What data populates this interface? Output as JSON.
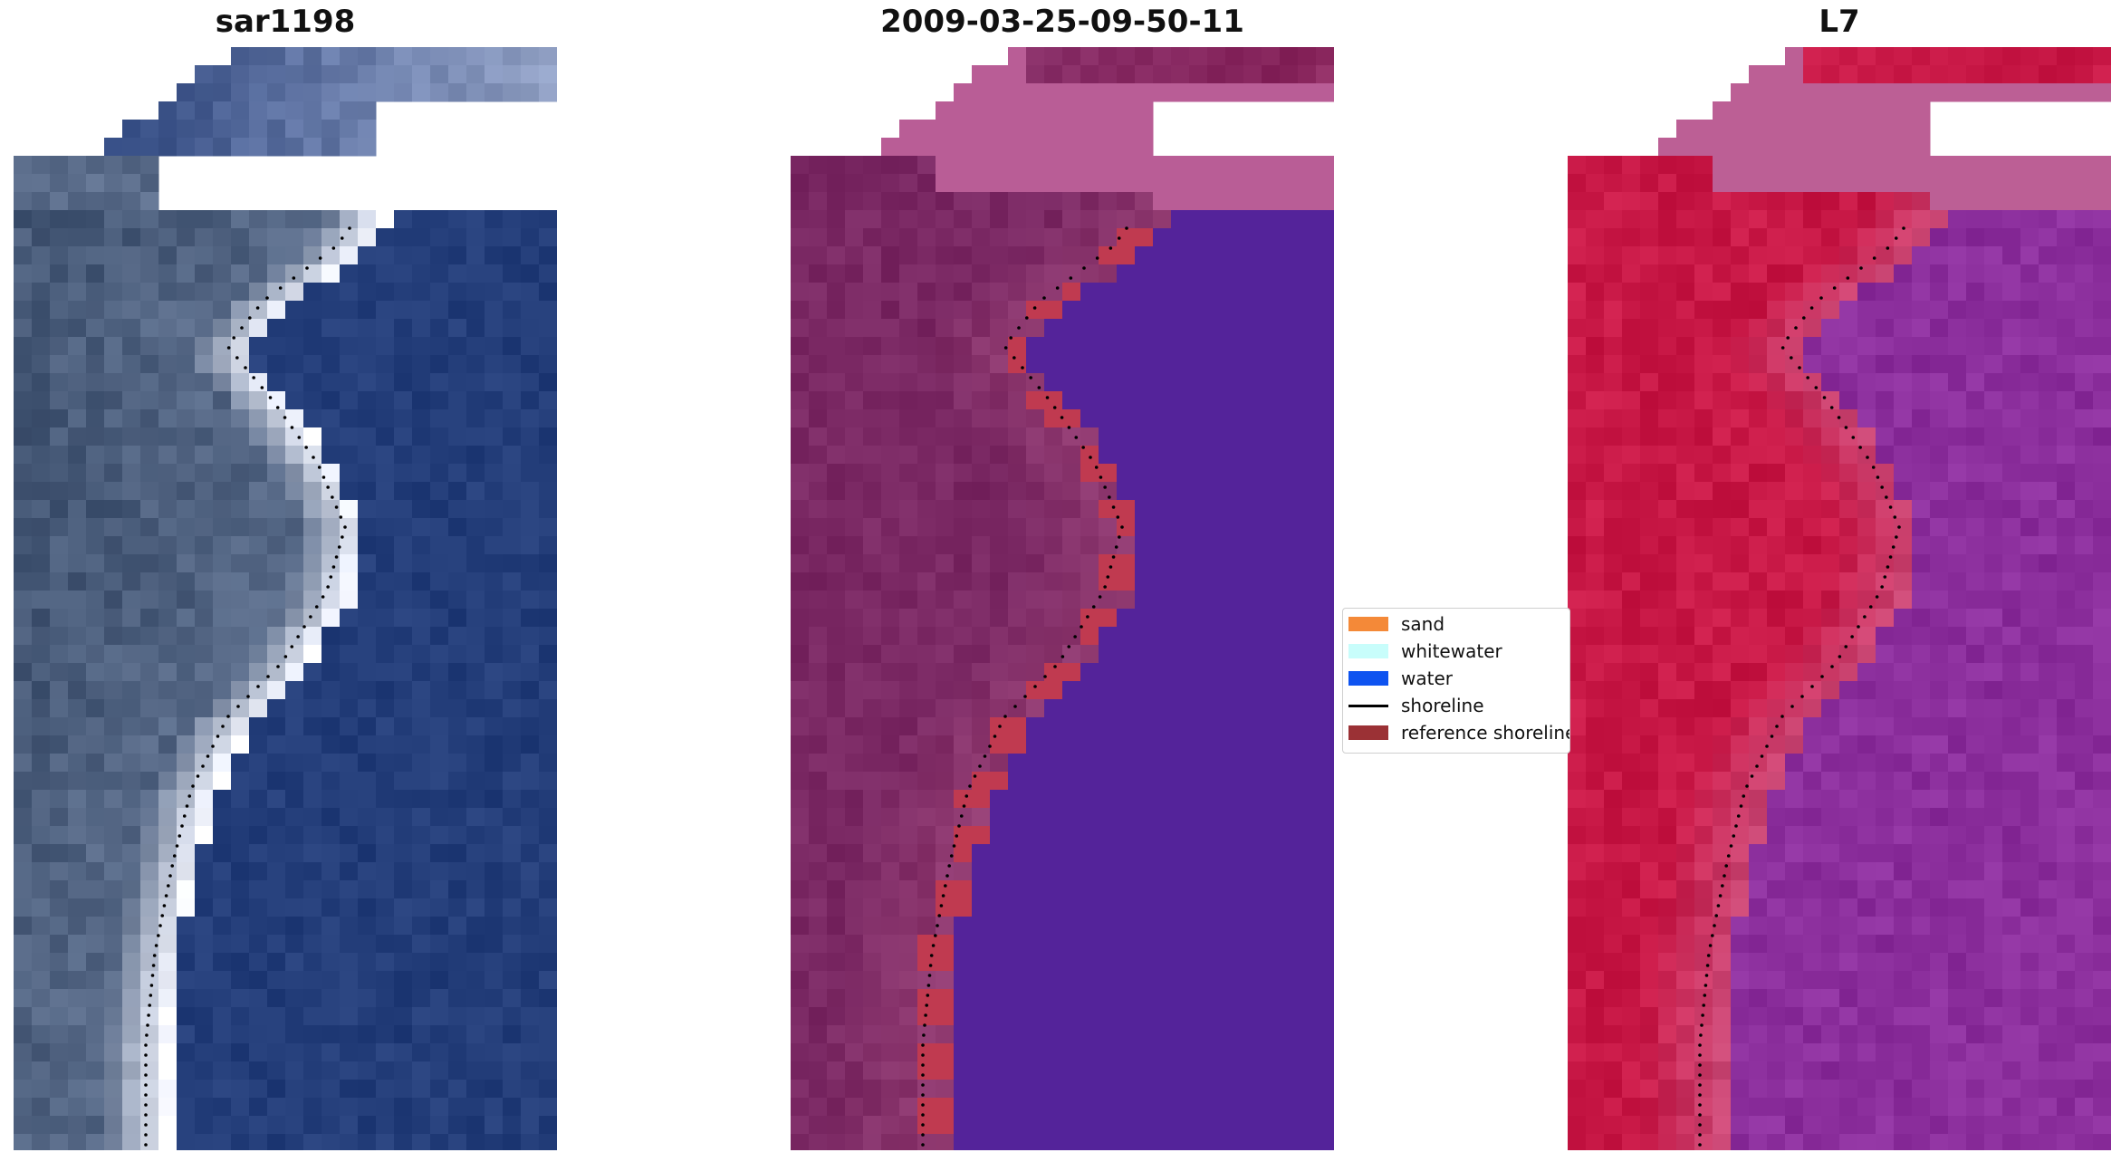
{
  "panels": [
    {
      "id": "rgb",
      "title": "sar1198"
    },
    {
      "id": "classified",
      "title": "2009-03-25-09-50-11"
    },
    {
      "id": "index",
      "title": "L7"
    }
  ],
  "legend": {
    "items": [
      {
        "label": "sand",
        "color": "#f48938",
        "kind": "patch"
      },
      {
        "label": "whitewater",
        "color": "#c8fdfb",
        "kind": "patch"
      },
      {
        "label": "water",
        "color": "#0e53f0",
        "kind": "patch"
      },
      {
        "label": "shoreline",
        "color": "#000000",
        "kind": "line"
      },
      {
        "label": "reference shoreline",
        "color": "#9b3135",
        "kind": "patch"
      }
    ]
  },
  "colors": {
    "rgb_water": "#233d79",
    "rgb_land": "#5a6c8a",
    "rgb_foam": "#e8ecf7",
    "class_land": "#7a2863",
    "class_water": "#54239a",
    "class_nodata": "#b95d96",
    "class_reference": "#c03a50",
    "index_land": "#c81846",
    "index_water": "#8b2e9c",
    "index_nodata": "#bc5f95"
  }
}
